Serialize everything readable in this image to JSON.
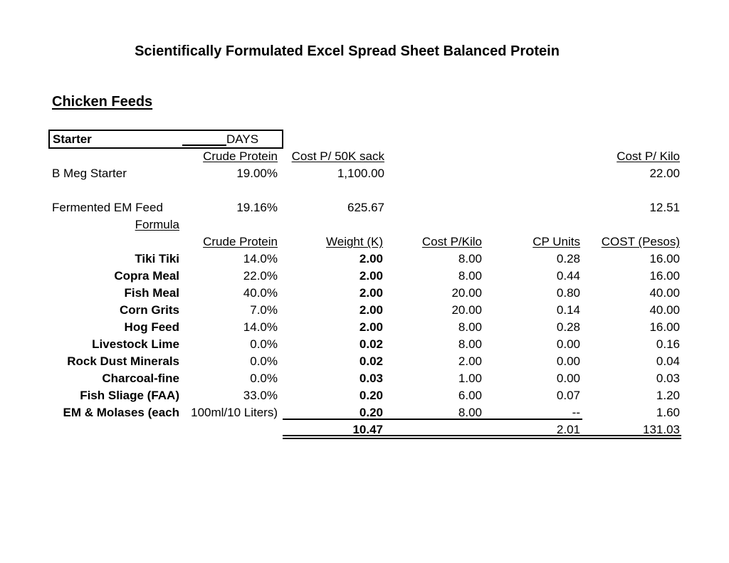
{
  "page": {
    "title": "Scientifically Formulated Excel Spread Sheet Balanced Protein",
    "section_heading": "Chicken Feeds"
  },
  "starter_box": {
    "label": "Starter",
    "days_label": "DAYS"
  },
  "premade": {
    "headers": {
      "crude_protein": "Crude Protein",
      "cost_per_sack": "Cost P/ 50K sack",
      "cost_per_kilo": "Cost P/ Kilo"
    },
    "rows": [
      {
        "name": "B Meg Starter",
        "crude_protein": "19.00%",
        "cost_per_sack": "1,100.00",
        "cost_per_kilo": "22.00"
      },
      {
        "name": "Fermented EM Feed",
        "crude_protein": "19.16%",
        "cost_per_sack": "625.67",
        "cost_per_kilo": "12.51"
      }
    ],
    "formula_label": "Formula"
  },
  "formula": {
    "headers": {
      "crude_protein": "Crude Protein",
      "weight": "Weight (K)",
      "cost_per_kilo": "Cost P/Kilo",
      "cp_units": "CP Units",
      "cost": "COST (Pesos)"
    },
    "rows": [
      {
        "name": "Tiki Tiki",
        "crude_protein": "14.0%",
        "weight": "2.00",
        "cost_per_kilo": "8.00",
        "cp_units": "0.28",
        "cost": "16.00"
      },
      {
        "name": "Copra Meal",
        "crude_protein": "22.0%",
        "weight": "2.00",
        "cost_per_kilo": "8.00",
        "cp_units": "0.44",
        "cost": "16.00"
      },
      {
        "name": "Fish Meal",
        "crude_protein": "40.0%",
        "weight": "2.00",
        "cost_per_kilo": "20.00",
        "cp_units": "0.80",
        "cost": "40.00"
      },
      {
        "name": "Corn Grits",
        "crude_protein": "7.0%",
        "weight": "2.00",
        "cost_per_kilo": "20.00",
        "cp_units": "0.14",
        "cost": "40.00"
      },
      {
        "name": "Hog Feed",
        "crude_protein": "14.0%",
        "weight": "2.00",
        "cost_per_kilo": "8.00",
        "cp_units": "0.28",
        "cost": "16.00"
      },
      {
        "name": "Livestock Lime",
        "crude_protein": "0.0%",
        "weight": "0.02",
        "cost_per_kilo": "8.00",
        "cp_units": "0.00",
        "cost": "0.16"
      },
      {
        "name": "Rock Dust Minerals",
        "crude_protein": "0.0%",
        "weight": "0.02",
        "cost_per_kilo": "2.00",
        "cp_units": "0.00",
        "cost": "0.04"
      },
      {
        "name": "Charcoal-fine",
        "crude_protein": "0.0%",
        "weight": "0.03",
        "cost_per_kilo": "1.00",
        "cp_units": "0.00",
        "cost": "0.03"
      },
      {
        "name": "Fish Sliage (FAA)",
        "crude_protein": "33.0%",
        "weight": "0.20",
        "cost_per_kilo": "6.00",
        "cp_units": "0.07",
        "cost": "1.20"
      },
      {
        "name": "EM & Molases (each",
        "crude_protein": "100ml/10 Liters)",
        "weight": "0.20",
        "cost_per_kilo": "8.00",
        "cp_units": "--",
        "cost": "1.60"
      }
    ],
    "totals": {
      "weight": "10.47",
      "cp_units": "2.01",
      "cost": "131.03"
    }
  }
}
